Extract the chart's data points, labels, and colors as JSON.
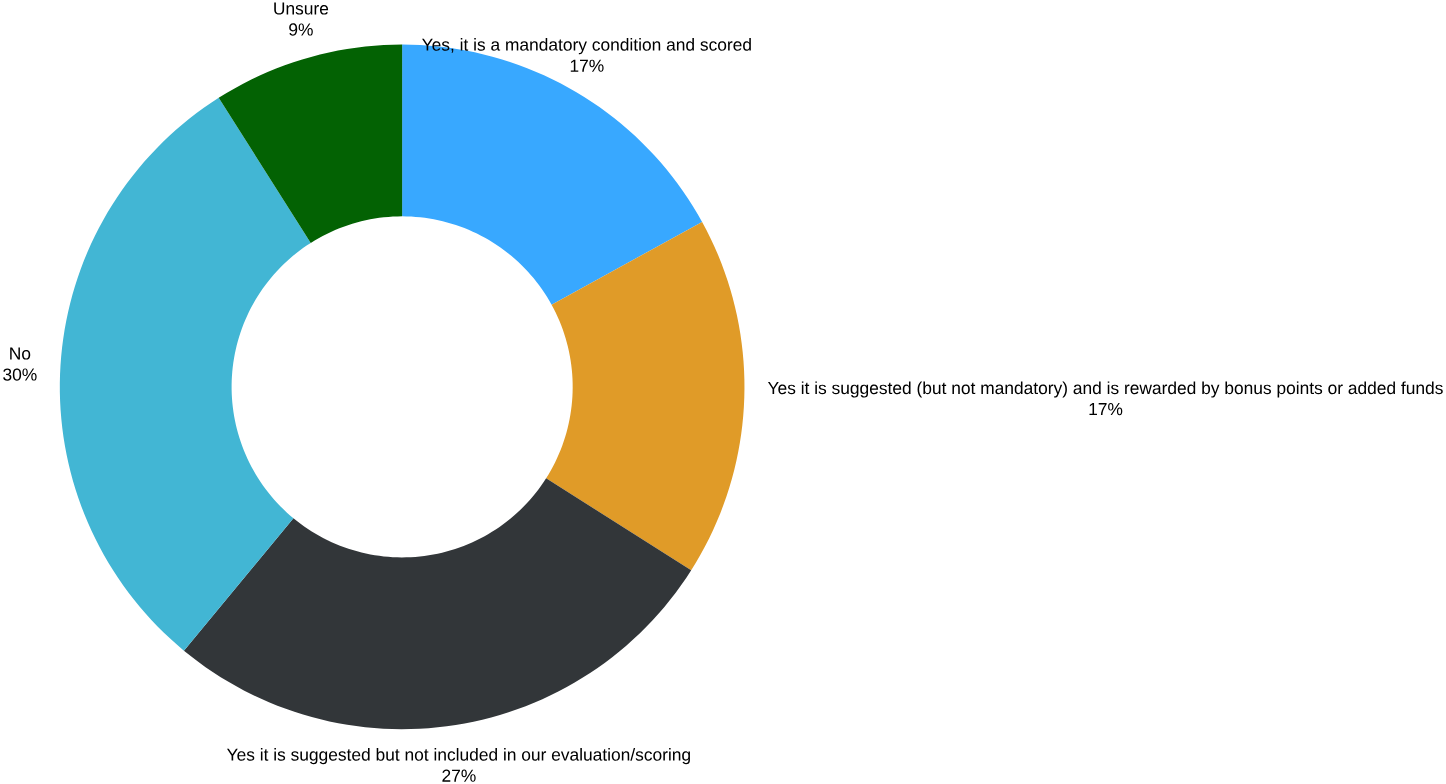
{
  "chart_data": {
    "type": "donut",
    "categories": [
      "Yes, it is a mandatory condition and scored",
      "Yes it is suggested (but not mandatory) and is rewarded by bonus points or added funds",
      "Yes it is suggested but not included in our evaluation/scoring",
      "No",
      "Unsure"
    ],
    "values": [
      17,
      17,
      27,
      30,
      9
    ],
    "value_labels": [
      "17%",
      "17%",
      "27%",
      "30%",
      "9%"
    ],
    "colors": [
      "#38a8ff",
      "#e09b28",
      "#323639",
      "#42b6d4",
      "#036203"
    ]
  }
}
